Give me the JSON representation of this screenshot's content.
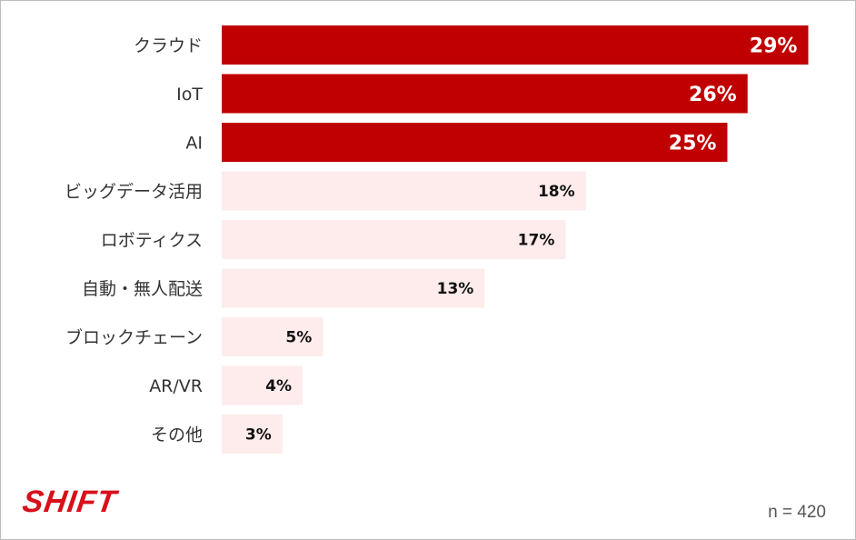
{
  "chart_data": {
    "type": "bar",
    "orientation": "horizontal",
    "categories": [
      "クラウド",
      "IoT",
      "AI",
      "ビッグデータ活用",
      "ロボティクス",
      "自動・無人配送",
      "ブロックチェーン",
      "AR/VR",
      "その他"
    ],
    "values": [
      29,
      26,
      25,
      18,
      17,
      13,
      5,
      4,
      3
    ],
    "value_labels": [
      "29%",
      "26%",
      "25%",
      "18%",
      "17%",
      "13%",
      "5%",
      "4%",
      "3%"
    ],
    "highlighted": [
      true,
      true,
      true,
      false,
      false,
      false,
      false,
      false,
      false
    ],
    "title": "",
    "xlabel": "",
    "ylabel": "",
    "xlim": [
      0,
      31
    ],
    "grid": false,
    "legend": "none"
  },
  "colors": {
    "highlight_bar": "#c00000",
    "normal_bar": "#fdeceb",
    "highlight_text": "#ffffff",
    "normal_text": "#111111"
  },
  "footer": {
    "logo": "SHIFT",
    "sample_size": "n = 420"
  }
}
